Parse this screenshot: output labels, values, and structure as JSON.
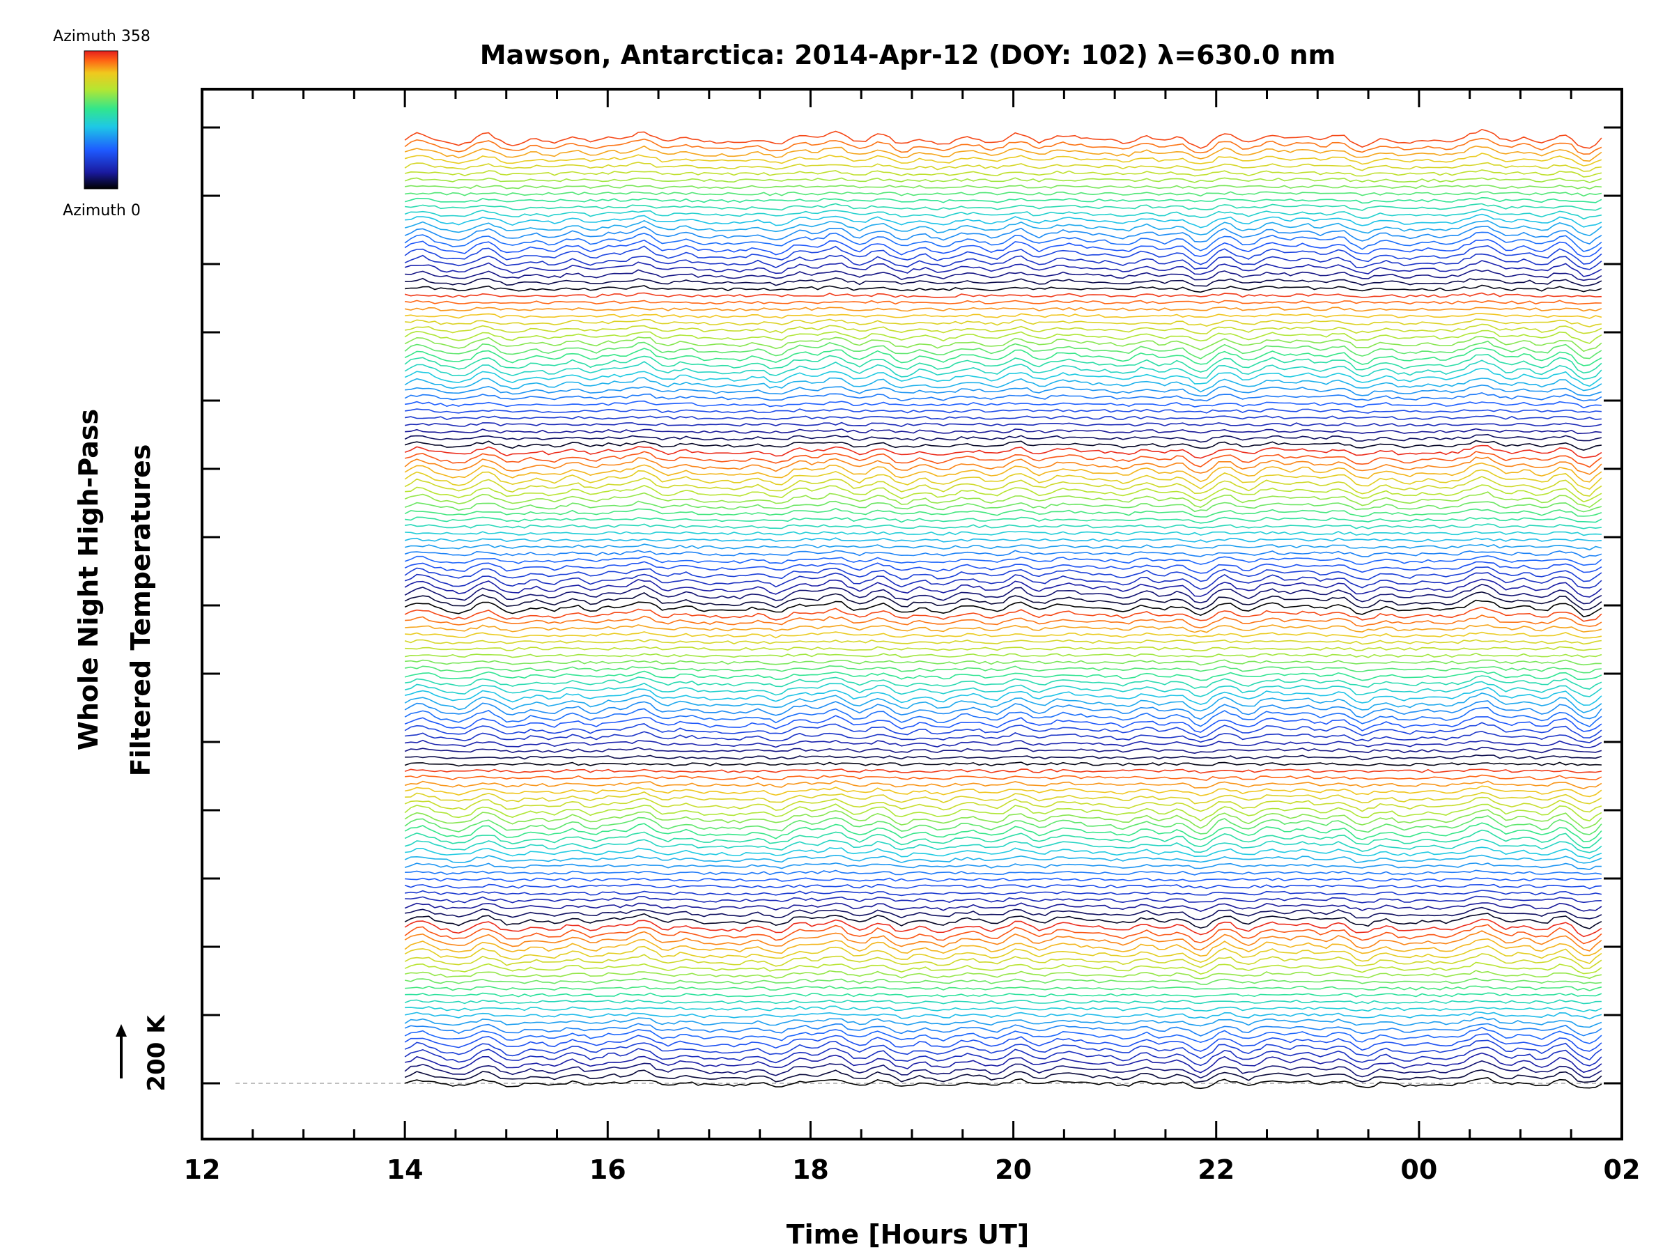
{
  "chart_data": {
    "type": "line",
    "title": "Mawson, Antarctica: 2014-Apr-12 (DOY: 102) λ=630.0 nm",
    "xlabel": "Time [Hours UT]",
    "ylabel": [
      "Whole Night High-Pass",
      "Filtered Temperatures"
    ],
    "x_ticks": [
      "12",
      "14",
      "16",
      "18",
      "20",
      "22",
      "00",
      "02"
    ],
    "xlim": [
      12,
      26
    ],
    "data_x_range": [
      14,
      25.8
    ],
    "scale_label": "200 K",
    "colorbar": {
      "top_label": "Azimuth 358",
      "bottom_label": "Azimuth 0",
      "colormap": "rainbow",
      "colors": [
        "#000000",
        "#1a1aa0",
        "#1e5aff",
        "#1ec8e6",
        "#32e68c",
        "#b4e632",
        "#f0c81e",
        "#ff6414",
        "#e61e1e"
      ]
    },
    "series_description": "Stacked, vertically offset high-pass filtered temperature traces, one per azimuth zone, colored by azimuth (0 to 358)",
    "series_count": 140,
    "azimuth_cycles": 6,
    "grid": false,
    "legend": "colorbar top-left"
  }
}
